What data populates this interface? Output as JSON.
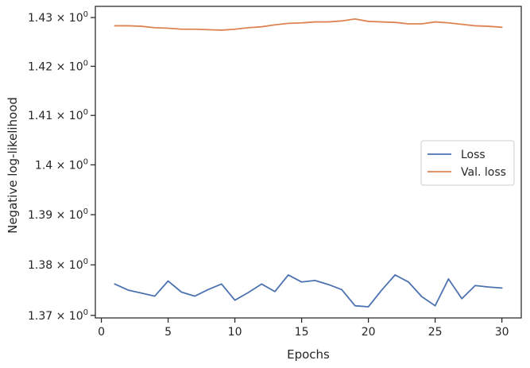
{
  "chart_data": {
    "type": "line",
    "xlabel": "Epochs",
    "ylabel": "Negative log-likelihood",
    "yscale": "log",
    "xlim": [
      -0.45,
      31.45
    ],
    "ylim": [
      1.3695,
      1.4323
    ],
    "xticks": [
      {
        "value": 0,
        "label": "0"
      },
      {
        "value": 5,
        "label": "5"
      },
      {
        "value": 10,
        "label": "10"
      },
      {
        "value": 15,
        "label": "15"
      },
      {
        "value": 20,
        "label": "20"
      },
      {
        "value": 25,
        "label": "25"
      },
      {
        "value": 30,
        "label": "30"
      }
    ],
    "yticks": [
      {
        "value": 1.37,
        "mantissa": "1.37",
        "exponent": "0"
      },
      {
        "value": 1.38,
        "mantissa": "1.38",
        "exponent": "0"
      },
      {
        "value": 1.39,
        "mantissa": "1.39",
        "exponent": "0"
      },
      {
        "value": 1.4,
        "mantissa": "1.4",
        "exponent": "0"
      },
      {
        "value": 1.41,
        "mantissa": "1.41",
        "exponent": "0"
      },
      {
        "value": 1.42,
        "mantissa": "1.42",
        "exponent": "0"
      },
      {
        "value": 1.43,
        "mantissa": "1.43",
        "exponent": "0"
      }
    ],
    "grid": false,
    "legend_position": "center-right",
    "x": [
      1,
      2,
      3,
      4,
      5,
      6,
      7,
      8,
      9,
      10,
      11,
      12,
      13,
      14,
      15,
      16,
      17,
      18,
      19,
      20,
      21,
      22,
      23,
      24,
      25,
      26,
      27,
      28,
      29,
      30
    ],
    "series": [
      {
        "name": "Loss",
        "color": "#4c72b0",
        "values": [
          1.3762,
          1.375,
          1.3744,
          1.3738,
          1.3768,
          1.3746,
          1.3738,
          1.3751,
          1.3762,
          1.373,
          1.3745,
          1.3762,
          1.3747,
          1.378,
          1.3766,
          1.3769,
          1.3761,
          1.3751,
          1.3719,
          1.3717,
          1.375,
          1.378,
          1.3766,
          1.3737,
          1.3719,
          1.3772,
          1.3733,
          1.3759,
          1.3756,
          1.3754
        ]
      },
      {
        "name": "Val. loss",
        "color": "#dd8452",
        "values": [
          1.4283,
          1.4283,
          1.4282,
          1.4279,
          1.4278,
          1.4276,
          1.4276,
          1.4275,
          1.4274,
          1.4276,
          1.4279,
          1.4281,
          1.4285,
          1.4288,
          1.4289,
          1.4291,
          1.4291,
          1.4293,
          1.4297,
          1.4292,
          1.4291,
          1.429,
          1.4287,
          1.4287,
          1.4291,
          1.4289,
          1.4286,
          1.4283,
          1.4282,
          1.428
        ]
      }
    ]
  }
}
